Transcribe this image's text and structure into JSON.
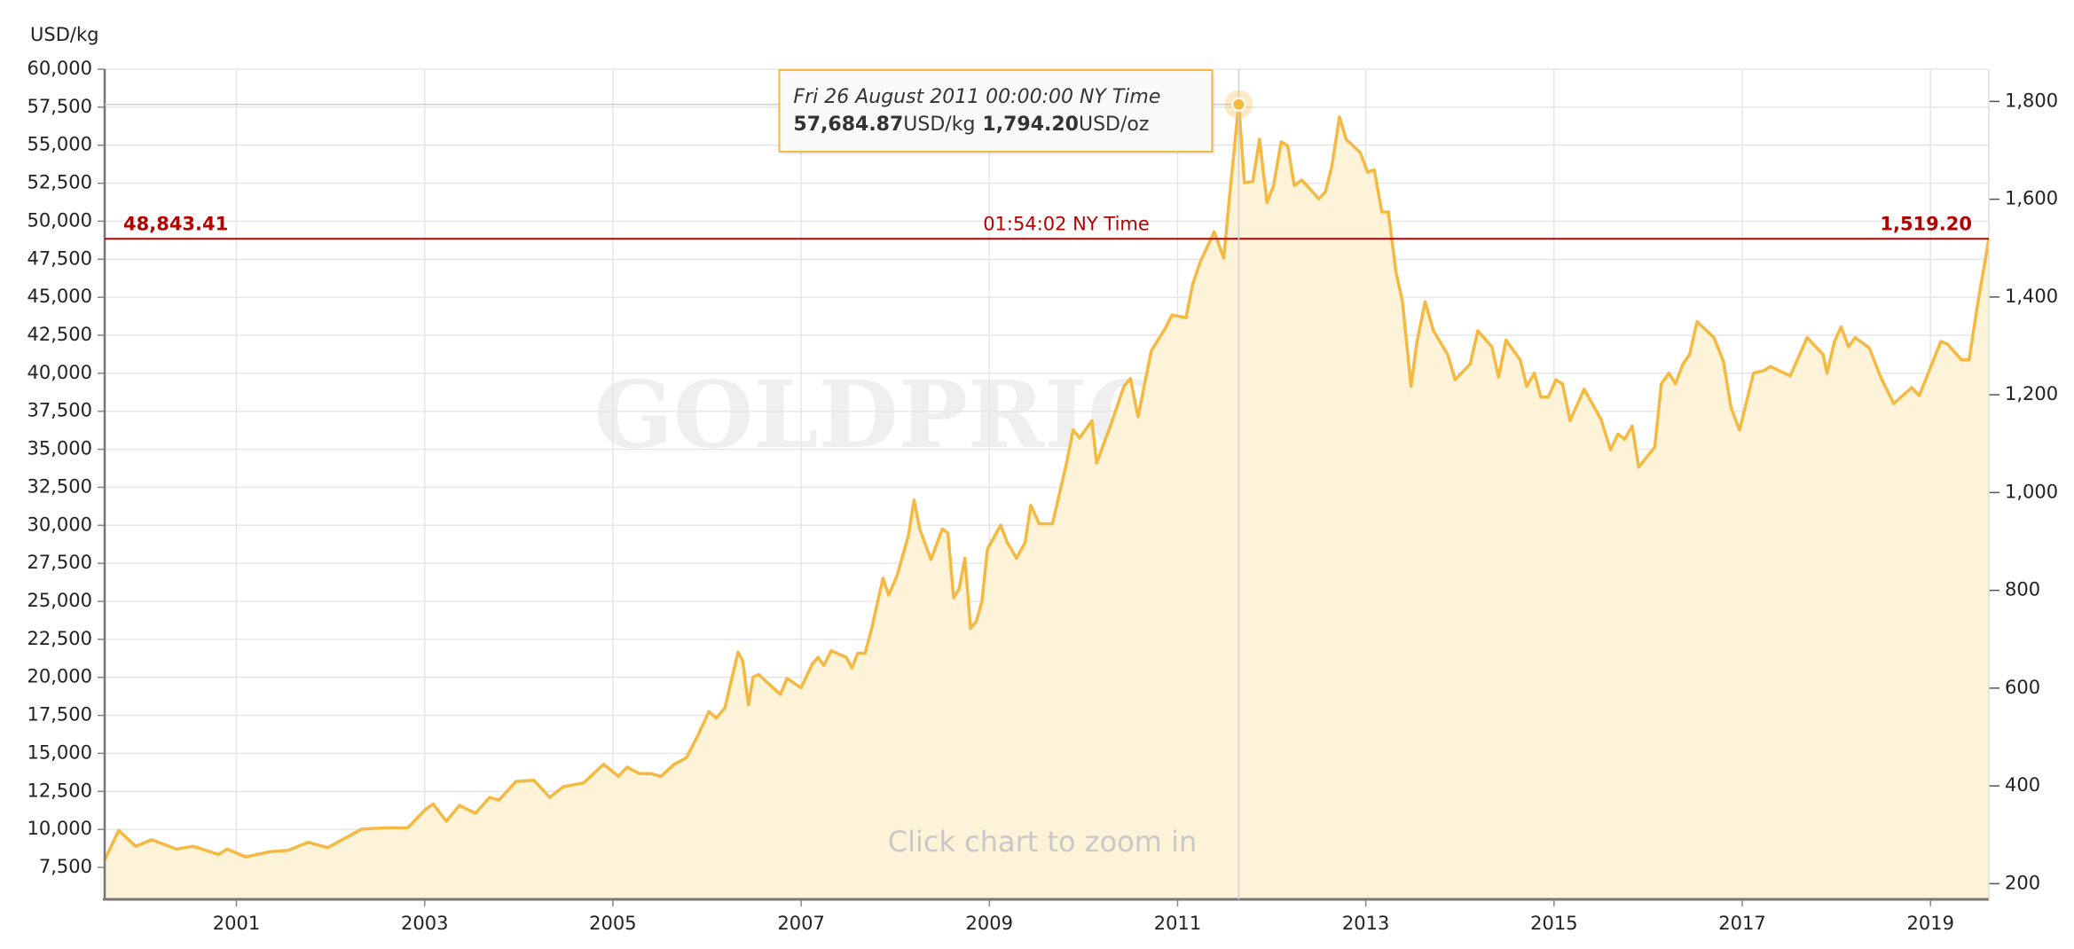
{
  "chart_data": {
    "type": "area",
    "ylabel": "USD/kg",
    "unit_oz": "USD/oz",
    "watermark": "GOLDPRICE.ORG",
    "hint": "Click chart to zoom in",
    "xlim": [
      1999.6,
      2019.62
    ],
    "xticks": [
      2001,
      2003,
      2005,
      2007,
      2009,
      2011,
      2013,
      2015,
      2017,
      2019
    ],
    "ylim": [
      5400,
      60000
    ],
    "yticks": [
      {
        "value": 7500,
        "label": "7,500"
      },
      {
        "value": 10000,
        "label": "10,000"
      },
      {
        "value": 12500,
        "label": "12,500"
      },
      {
        "value": 15000,
        "label": "15,000"
      },
      {
        "value": 17500,
        "label": "17,500"
      },
      {
        "value": 20000,
        "label": "20,000"
      },
      {
        "value": 22500,
        "label": "22,500"
      },
      {
        "value": 25000,
        "label": "25,000"
      },
      {
        "value": 27500,
        "label": "27,500"
      },
      {
        "value": 30000,
        "label": "30,000"
      },
      {
        "value": 32500,
        "label": "32,500"
      },
      {
        "value": 35000,
        "label": "35,000"
      },
      {
        "value": 37500,
        "label": "37,500"
      },
      {
        "value": 40000,
        "label": "40,000"
      },
      {
        "value": 42500,
        "label": "42,500"
      },
      {
        "value": 45000,
        "label": "45,000"
      },
      {
        "value": 47500,
        "label": "47,500"
      },
      {
        "value": 50000,
        "label": "50,000"
      },
      {
        "value": 52500,
        "label": "52,500"
      },
      {
        "value": 55000,
        "label": "55,000"
      },
      {
        "value": 57500,
        "label": "57,500"
      },
      {
        "value": 60000,
        "label": "60,000"
      }
    ],
    "y2lim": [
      168,
      1866
    ],
    "y2ticks": [
      200,
      400,
      600,
      800,
      {
        "value": 1000,
        "label": "1,000"
      },
      {
        "value": 1200,
        "label": "1,200"
      },
      {
        "value": 1400,
        "label": "1,400"
      },
      {
        "value": 1600,
        "label": "1,600"
      },
      {
        "value": 1800,
        "label": "1,800"
      }
    ],
    "grid": true,
    "x": [
      1999.6,
      1999.75,
      1999.93,
      2000.1,
      2000.36,
      2000.54,
      2000.81,
      2000.9,
      2001.1,
      2001.36,
      2001.55,
      2001.76,
      2001.97,
      2002.15,
      2002.33,
      2002.6,
      2002.82,
      2003.01,
      2003.09,
      2003.23,
      2003.37,
      2003.54,
      2003.69,
      2003.79,
      2003.97,
      2004.16,
      2004.33,
      2004.47,
      2004.69,
      2004.9,
      2005.06,
      2005.15,
      2005.28,
      2005.4,
      2005.51,
      2005.65,
      2005.78,
      2005.89,
      2006.02,
      2006.1,
      2006.19,
      2006.33,
      2006.38,
      2006.44,
      2006.49,
      2006.55,
      2006.7,
      2006.78,
      2006.85,
      2007.0,
      2007.12,
      2007.18,
      2007.24,
      2007.32,
      2007.48,
      2007.54,
      2007.6,
      2007.68,
      2007.75,
      2007.87,
      2007.93,
      2008.02,
      2008.14,
      2008.2,
      2008.26,
      2008.38,
      2008.5,
      2008.56,
      2008.62,
      2008.68,
      2008.74,
      2008.8,
      2008.86,
      2008.92,
      2008.98,
      2009.12,
      2009.19,
      2009.29,
      2009.38,
      2009.44,
      2009.53,
      2009.67,
      2009.82,
      2009.89,
      2009.96,
      2010.09,
      2010.14,
      2010.28,
      2010.43,
      2010.5,
      2010.58,
      2010.72,
      2010.87,
      2010.94,
      2011.09,
      2011.16,
      2011.24,
      2011.39,
      2011.49,
      2011.55,
      2011.65,
      2011.71,
      2011.8,
      2011.87,
      2011.95,
      2012.02,
      2012.1,
      2012.17,
      2012.24,
      2012.32,
      2012.5,
      2012.57,
      2012.64,
      2012.72,
      2012.79,
      2012.94,
      2013.02,
      2013.09,
      2013.17,
      2013.24,
      2013.32,
      2013.39,
      2013.48,
      2013.54,
      2013.63,
      2013.72,
      2013.87,
      2013.95,
      2014.11,
      2014.19,
      2014.34,
      2014.41,
      2014.49,
      2014.64,
      2014.71,
      2014.79,
      2014.86,
      2014.94,
      2015.02,
      2015.09,
      2015.17,
      2015.32,
      2015.5,
      2015.6,
      2015.68,
      2015.75,
      2015.83,
      2015.9,
      2016.07,
      2016.14,
      2016.22,
      2016.29,
      2016.37,
      2016.44,
      2016.52,
      2016.7,
      2016.8,
      2016.88,
      2016.97,
      2017.12,
      2017.23,
      2017.3,
      2017.51,
      2017.69,
      2017.86,
      2017.9,
      2017.98,
      2018.05,
      2018.13,
      2018.2,
      2018.35,
      2018.47,
      2018.61,
      2018.8,
      2018.88,
      2019.11,
      2019.18,
      2019.33,
      2019.41,
      2019.5,
      2019.62
    ],
    "series": [
      {
        "color": "#f5b941",
        "fill": "#fdf3d9",
        "values": [
          8000,
          9930,
          8890,
          9320,
          8710,
          8890,
          8360,
          8710,
          8190,
          8540,
          8620,
          9150,
          8800,
          9410,
          10020,
          10100,
          10100,
          11320,
          11670,
          10540,
          11580,
          11060,
          12100,
          11930,
          13150,
          13230,
          12100,
          12800,
          13060,
          14280,
          13490,
          14100,
          13670,
          13670,
          13490,
          14280,
          14710,
          16010,
          17750,
          17320,
          18010,
          21660,
          21060,
          18190,
          20010,
          20190,
          19320,
          18880,
          19930,
          19320,
          20880,
          21320,
          20790,
          21750,
          21320,
          20620,
          21580,
          21580,
          23230,
          26530,
          25400,
          26710,
          29310,
          31660,
          29750,
          27750,
          29750,
          29490,
          25230,
          25840,
          27840,
          23230,
          23660,
          24970,
          28440,
          30010,
          28880,
          27840,
          28880,
          31310,
          30100,
          30100,
          34100,
          36270,
          35750,
          36880,
          34100,
          36440,
          39140,
          39660,
          37140,
          41480,
          42960,
          43830,
          43660,
          45830,
          47310,
          49310,
          47570,
          51480,
          57684.87,
          52520,
          52610,
          55390,
          51220,
          52350,
          55220,
          54960,
          52350,
          52700,
          51480,
          51920,
          53650,
          56870,
          55390,
          54520,
          53220,
          53390,
          50610,
          50610,
          46700,
          44700,
          39140,
          41920,
          44700,
          42790,
          41220,
          39570,
          40610,
          42790,
          41740,
          39750,
          42180,
          40880,
          39140,
          40010,
          38440,
          38440,
          39570,
          39310,
          36880,
          38960,
          36960,
          34960,
          36010,
          35660,
          36530,
          33830,
          35140,
          39310,
          40010,
          39310,
          40610,
          41220,
          43400,
          42350,
          40790,
          37750,
          36270,
          40010,
          40180,
          40440,
          39830,
          42350,
          41220,
          40010,
          42090,
          43050,
          41740,
          42350,
          41660,
          39750,
          38010,
          39050,
          38530,
          42090,
          41920,
          40880,
          40880,
          44530,
          48843.41
        ]
      }
    ],
    "current": {
      "value": 48843.41,
      "label": "48,843.41",
      "time": "01:54:02 NY Time",
      "value_oz": 1519.2,
      "label_oz": "1,519.20",
      "color": "#b30000"
    },
    "tooltip": {
      "date": "Fri 26 August 2011 00:00:00 NY Time",
      "label": "57,684.87",
      "value_oz": 1794.2,
      "label_oz": "1,794.20"
    }
  }
}
